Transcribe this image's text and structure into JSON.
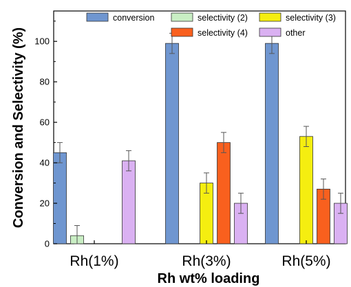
{
  "chart_data": {
    "type": "bar",
    "categories": [
      "Rh(1%)",
      "Rh(3%)",
      "Rh(5%)"
    ],
    "xlabel": "Rh wt% loading",
    "ylabel": "Conversion and Selectivity (%)",
    "ylim": [
      0,
      115
    ],
    "yticks": [
      0,
      20,
      40,
      60,
      80,
      100
    ],
    "grid": false,
    "legend_position": "top",
    "series": [
      {
        "name": "conversion",
        "color": "#6f96d0",
        "values": [
          45,
          99,
          99
        ],
        "errors": [
          5,
          5,
          5
        ]
      },
      {
        "name": "selectivity (2)",
        "color": "#c9eec4",
        "values": [
          4,
          0,
          0
        ],
        "errors": [
          5,
          0,
          0
        ]
      },
      {
        "name": "selectivity (3)",
        "color": "#f5ee10",
        "values": [
          0,
          30,
          53
        ],
        "errors": [
          0,
          5,
          5
        ]
      },
      {
        "name": "selectivity (4)",
        "color": "#f9601e",
        "values": [
          0,
          50,
          27
        ],
        "errors": [
          0,
          5,
          5
        ]
      },
      {
        "name": "other",
        "color": "#dab1f2",
        "values": [
          41,
          20,
          20
        ],
        "errors": [
          5,
          5,
          5
        ]
      }
    ]
  }
}
